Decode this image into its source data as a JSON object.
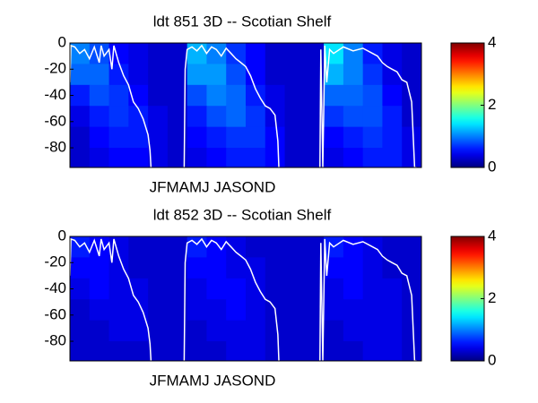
{
  "chart_data": [
    {
      "type": "heatmap",
      "title": "ldt  851 3D   -- Scotian Shelf",
      "xlabel": "JFMAMJ JASOND",
      "xlim": [
        0,
        36
      ],
      "ylim": [
        -95,
        0
      ],
      "yticks": [
        0,
        -20,
        -40,
        -60,
        -80
      ],
      "x_edges": [
        0,
        2,
        4,
        6,
        8,
        10,
        12,
        14,
        16,
        18,
        20,
        22,
        24,
        26,
        28,
        30,
        32,
        34,
        36
      ],
      "y_edges": [
        0,
        -16,
        -32,
        -48,
        -64,
        -80,
        -95
      ],
      "z": [
        [
          1.0,
          0.8,
          0.5,
          0.4,
          0.3,
          0.3,
          1.2,
          1.0,
          0.7,
          0.5,
          0.3,
          0.3,
          0.3,
          1.4,
          1.0,
          0.6,
          0.4,
          0.3
        ],
        [
          0.9,
          0.9,
          0.6,
          0.4,
          0.3,
          0.3,
          1.1,
          1.1,
          0.8,
          0.5,
          0.3,
          0.3,
          0.3,
          1.2,
          1.0,
          0.7,
          0.4,
          0.3
        ],
        [
          0.6,
          0.8,
          0.7,
          0.5,
          0.3,
          0.3,
          0.8,
          1.0,
          0.9,
          0.6,
          0.4,
          0.3,
          0.3,
          0.9,
          0.9,
          0.8,
          0.5,
          0.3
        ],
        [
          0.4,
          0.6,
          0.7,
          0.6,
          0.4,
          0.3,
          0.6,
          0.8,
          0.9,
          0.7,
          0.4,
          0.3,
          0.3,
          0.7,
          0.8,
          0.8,
          0.6,
          0.3
        ],
        [
          0.3,
          0.5,
          0.6,
          0.6,
          0.4,
          0.3,
          0.5,
          0.6,
          0.7,
          0.7,
          0.5,
          0.3,
          0.3,
          0.5,
          0.6,
          0.7,
          0.6,
          0.4
        ],
        [
          0.3,
          0.4,
          0.5,
          0.5,
          0.4,
          0.3,
          0.4,
          0.5,
          0.6,
          0.6,
          0.5,
          0.3,
          0.3,
          0.4,
          0.5,
          0.6,
          0.6,
          0.4
        ]
      ],
      "clim": [
        0,
        4
      ],
      "cticks": [
        0,
        2,
        4
      ],
      "line_color": "#ffffff",
      "line": {
        "x": [
          0,
          0.1,
          0.5,
          1,
          1.5,
          2,
          2.5,
          3,
          3.2,
          3.5,
          4,
          4.3,
          4.5,
          5,
          5.5,
          6,
          6.5,
          7,
          7.5,
          8,
          8.2,
          8.3,
          null,
          11.7,
          11.8,
          12,
          12.5,
          13,
          13.5,
          14,
          14.5,
          15,
          15.5,
          16,
          16.5,
          17,
          17.5,
          18,
          18.5,
          19,
          19.5,
          20,
          20.5,
          21,
          21.3,
          21.4,
          null,
          25.6,
          25.7,
          25.9,
          26.1,
          26.3,
          26.6,
          27,
          28,
          29,
          30,
          31,
          31.5,
          32,
          32.5,
          33,
          33.5,
          34,
          34.5,
          35,
          35.3,
          35.5
        ],
        "y": [
          -30,
          -2,
          -3,
          -8,
          -5,
          -12,
          -3,
          -15,
          -2,
          -10,
          -5,
          -20,
          -2,
          -15,
          -25,
          -32,
          -45,
          -50,
          -58,
          -70,
          -82,
          -95,
          null,
          -95,
          -20,
          -5,
          -3,
          -6,
          -2,
          -8,
          -3,
          -5,
          -10,
          -4,
          -8,
          -12,
          -15,
          -18,
          -25,
          -35,
          -42,
          -48,
          -50,
          -55,
          -75,
          -95,
          null,
          -95,
          -5,
          -95,
          -2,
          -30,
          -5,
          -8,
          -3,
          -6,
          -4,
          -8,
          -10,
          -15,
          -18,
          -20,
          -22,
          -28,
          -30,
          -45,
          -95,
          -95
        ]
      }
    },
    {
      "type": "heatmap",
      "title": "ldt  852 3D   -- Scotian Shelf",
      "xlabel": "JFMAMJ JASOND",
      "xlim": [
        0,
        36
      ],
      "ylim": [
        -95,
        0
      ],
      "yticks": [
        0,
        -20,
        -40,
        -60,
        -80
      ],
      "x_edges": [
        0,
        2,
        4,
        6,
        8,
        10,
        12,
        14,
        16,
        18,
        20,
        22,
        24,
        26,
        28,
        30,
        32,
        34,
        36
      ],
      "y_edges": [
        0,
        -16,
        -32,
        -48,
        -64,
        -80,
        -95
      ],
      "z": [
        [
          0.6,
          0.5,
          0.4,
          0.3,
          0.3,
          0.3,
          0.6,
          0.5,
          0.4,
          0.3,
          0.3,
          0.3,
          0.3,
          0.6,
          0.5,
          0.4,
          0.3,
          0.3
        ],
        [
          0.5,
          0.5,
          0.4,
          0.3,
          0.3,
          0.3,
          0.5,
          0.5,
          0.4,
          0.4,
          0.3,
          0.3,
          0.3,
          0.5,
          0.5,
          0.4,
          0.3,
          0.3
        ],
        [
          0.4,
          0.5,
          0.4,
          0.4,
          0.3,
          0.3,
          0.4,
          0.5,
          0.5,
          0.4,
          0.3,
          0.3,
          0.3,
          0.4,
          0.5,
          0.4,
          0.4,
          0.3
        ],
        [
          0.3,
          0.4,
          0.4,
          0.4,
          0.3,
          0.3,
          0.4,
          0.4,
          0.5,
          0.4,
          0.3,
          0.3,
          0.3,
          0.4,
          0.4,
          0.4,
          0.4,
          0.3
        ],
        [
          0.3,
          0.3,
          0.4,
          0.4,
          0.3,
          0.3,
          0.3,
          0.4,
          0.4,
          0.4,
          0.3,
          0.3,
          0.3,
          0.3,
          0.4,
          0.4,
          0.4,
          0.3
        ],
        [
          0.3,
          0.3,
          0.3,
          0.3,
          0.3,
          0.3,
          0.3,
          0.3,
          0.4,
          0.4,
          0.3,
          0.3,
          0.3,
          0.3,
          0.3,
          0.4,
          0.4,
          0.3
        ]
      ],
      "clim": [
        0,
        4
      ],
      "cticks": [
        0,
        2,
        4
      ],
      "line_color": "#ffffff",
      "line": {
        "x": [
          0,
          0.1,
          0.5,
          1,
          1.5,
          2,
          2.5,
          3,
          3.2,
          3.5,
          4,
          4.3,
          4.5,
          5,
          5.5,
          6,
          6.5,
          7,
          7.5,
          8,
          8.2,
          8.3,
          null,
          11.7,
          11.8,
          12,
          12.5,
          13,
          13.5,
          14,
          14.5,
          15,
          15.5,
          16,
          16.5,
          17,
          17.5,
          18,
          18.5,
          19,
          19.5,
          20,
          20.5,
          21,
          21.3,
          21.4,
          null,
          25.6,
          25.7,
          25.9,
          26.1,
          26.3,
          26.6,
          27,
          28,
          29,
          30,
          31,
          31.5,
          32,
          32.5,
          33,
          33.5,
          34,
          34.5,
          35,
          35.3,
          35.5
        ],
        "y": [
          -30,
          -2,
          -3,
          -8,
          -5,
          -12,
          -3,
          -15,
          -2,
          -10,
          -5,
          -20,
          -2,
          -15,
          -25,
          -32,
          -45,
          -50,
          -58,
          -70,
          -82,
          -95,
          null,
          -95,
          -20,
          -5,
          -3,
          -6,
          -2,
          -8,
          -3,
          -5,
          -10,
          -4,
          -8,
          -12,
          -15,
          -18,
          -25,
          -35,
          -42,
          -48,
          -50,
          -55,
          -75,
          -95,
          null,
          -95,
          -5,
          -95,
          -2,
          -30,
          -5,
          -8,
          -3,
          -6,
          -4,
          -8,
          -10,
          -15,
          -18,
          -20,
          -22,
          -28,
          -30,
          -45,
          -95,
          -95
        ]
      }
    }
  ]
}
